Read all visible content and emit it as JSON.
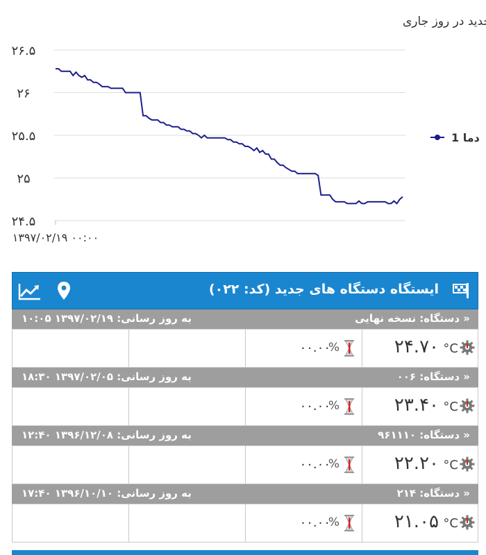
{
  "chart_data": {
    "type": "line",
    "title": "گزارش آمپر ایستگاه دستگاه های جدید در روز جاری",
    "y_ticks": [
      "۲۶.۵",
      "۲۶",
      "۲۵.۵",
      "۲۵",
      "۲۴.۵"
    ],
    "y_tick_values": [
      26.5,
      26,
      25.5,
      25,
      24.5
    ],
    "ylim": [
      24.5,
      26.5
    ],
    "x_tick_label": "۱۳۹۷/۰۲/۱۹ ۰۰:۰۰",
    "legend_position": "right",
    "color": "#1c1c8c",
    "series": [
      {
        "name": "دما 1",
        "values": [
          26.28,
          26.28,
          26.25,
          26.25,
          26.25,
          26.25,
          26.2,
          26.24,
          26.2,
          26.18,
          26.2,
          26.15,
          26.15,
          26.12,
          26.12,
          26.1,
          26.07,
          26.07,
          26.07,
          26.05,
          26.05,
          26.05,
          26.05,
          26.05,
          26.0,
          26.0,
          26.0,
          26.0,
          26.0,
          26.0,
          25.73,
          25.73,
          25.7,
          25.68,
          25.68,
          25.68,
          25.65,
          25.65,
          25.62,
          25.62,
          25.6,
          25.6,
          25.6,
          25.57,
          25.57,
          25.55,
          25.55,
          25.52,
          25.52,
          25.5,
          25.47,
          25.5,
          25.47,
          25.47,
          25.47,
          25.47,
          25.47,
          25.47,
          25.47,
          25.45,
          25.45,
          25.42,
          25.42,
          25.4,
          25.4,
          25.37,
          25.37,
          25.35,
          25.32,
          25.35,
          25.3,
          25.32,
          25.28,
          25.28,
          25.22,
          25.22,
          25.18,
          25.15,
          25.15,
          25.12,
          25.1,
          25.08,
          25.08,
          25.05,
          25.05,
          25.05,
          25.05,
          25.05,
          25.05,
          25.05,
          25.03,
          24.8,
          24.8,
          24.8,
          24.8,
          24.75,
          24.72,
          24.72,
          24.72,
          24.72,
          24.7,
          24.7,
          24.7,
          24.7,
          24.73,
          24.7,
          24.7,
          24.72,
          24.72,
          24.72,
          24.72,
          24.72,
          24.72,
          24.72,
          24.7,
          24.7,
          24.73,
          24.7,
          24.75,
          24.78
        ]
      }
    ]
  },
  "panel": {
    "title": "ایستگاه دستگاه های جدید (کد: ۰۲۲)",
    "icons": [
      "flag-icon",
      "map-pin-icon",
      "line-chart-icon"
    ],
    "header_color": "#1a86cf"
  },
  "devices": [
    {
      "name": "« دستگاه: نسخه نهایی",
      "update": "به روز رسانی: ۱۳۹۷/۰۲/۱۹ ۱۰:۰۵",
      "temp": "۲۴.۷۰",
      "temp_unit": "°C",
      "humidity": "۰۰.۰۰",
      "humidity_unit": "%"
    },
    {
      "name": "« دستگاه: ۰۰۶",
      "update": "به روز رسانی: ۱۳۹۷/۰۲/۰۵ ۱۸:۳۰",
      "temp": "۲۳.۴۰",
      "temp_unit": "°C",
      "humidity": "۰۰.۰۰",
      "humidity_unit": "%"
    },
    {
      "name": "« دستگاه: ۹۶۱۱۱۰",
      "update": "به روز رسانی: ۱۳۹۶/۱۲/۰۸ ۱۲:۴۰",
      "temp": "۲۲.۲۰",
      "temp_unit": "°C",
      "humidity": "۰۰.۰۰",
      "humidity_unit": "%"
    },
    {
      "name": "« دستگاه: ۲۱۴",
      "update": "به روز رسانی: ۱۳۹۶/۱۰/۱۰ ۱۷:۴۰",
      "temp": "۲۱.۰۵",
      "temp_unit": "°C",
      "humidity": "۰۰.۰۰",
      "humidity_unit": "%"
    }
  ]
}
